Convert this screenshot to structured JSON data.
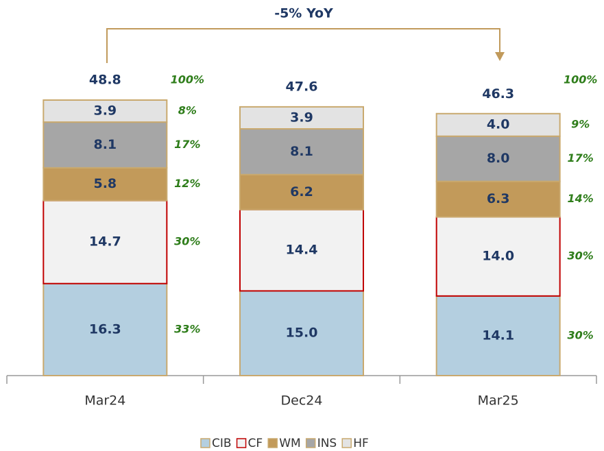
{
  "chart_data": {
    "type": "stacked_bar",
    "annotation": "-5% YoY",
    "categories": [
      "Mar24",
      "Dec24",
      "Mar25"
    ],
    "totals": [
      48.8,
      47.6,
      46.3
    ],
    "total_shares": [
      100,
      null,
      100
    ],
    "total_share_labels": [
      "100%",
      null,
      "100%"
    ],
    "series": [
      {
        "name": "CIB",
        "color": "#b4cfe0",
        "border": "#c9a96e",
        "values": [
          16.3,
          15.0,
          14.1
        ],
        "value_labels": [
          "16.3",
          "15.0",
          "14.1"
        ],
        "shares": [
          33,
          null,
          30
        ],
        "share_labels": [
          "33%",
          null,
          "30%"
        ]
      },
      {
        "name": "CF",
        "color": "#f2f2f2",
        "border": "#c00000",
        "values": [
          14.7,
          14.4,
          14.0
        ],
        "value_labels": [
          "14.7",
          "14.4",
          "14.0"
        ],
        "shares": [
          30,
          null,
          30
        ],
        "share_labels": [
          "30%",
          null,
          "30%"
        ]
      },
      {
        "name": "WM",
        "color": "#c29a5a",
        "border": "#c9a96e",
        "values": [
          5.8,
          6.2,
          6.3
        ],
        "value_labels": [
          "5.8",
          "6.2",
          "6.3"
        ],
        "shares": [
          12,
          null,
          14
        ],
        "share_labels": [
          "12%",
          null,
          "14%"
        ]
      },
      {
        "name": "INS",
        "color": "#a6a6a6",
        "border": "#c9a96e",
        "values": [
          8.1,
          8.1,
          8.0
        ],
        "value_labels": [
          "8.1",
          "8.1",
          "8.0"
        ],
        "shares": [
          17,
          null,
          17
        ],
        "share_labels": [
          "17%",
          null,
          "17%"
        ]
      },
      {
        "name": "HF",
        "color": "#e3e3e3",
        "border": "#c9a96e",
        "values": [
          3.9,
          3.9,
          4.0
        ],
        "value_labels": [
          "3.9",
          "3.9",
          "4.0"
        ],
        "shares": [
          8,
          null,
          9
        ],
        "share_labels": [
          "8%",
          null,
          "9%"
        ]
      }
    ]
  }
}
